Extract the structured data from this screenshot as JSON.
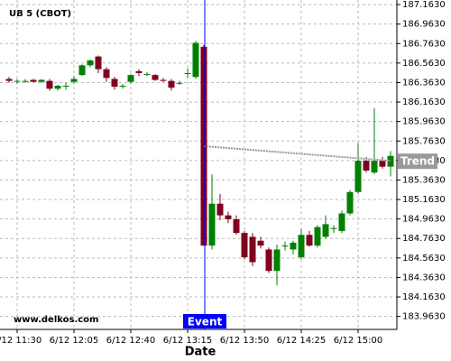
{
  "chart_data": {
    "type": "candlestick",
    "title": "UB 5 (CBOT)",
    "watermark": "www.delkos.com",
    "x_label": "Date",
    "categories": [
      null,
      "6/12 11:30",
      null,
      null,
      null,
      null,
      null,
      null,
      "6/12 12:05",
      null,
      null,
      null,
      null,
      null,
      null,
      "6/12 12:40",
      null,
      null,
      null,
      null,
      null,
      null,
      "6/12 13:15",
      null,
      null,
      null,
      null,
      null,
      null,
      "6/12 13:50",
      null,
      null,
      null,
      null,
      null,
      null,
      "6/12 14:25",
      null,
      null,
      null,
      null,
      null,
      null,
      "6/12 15:00",
      null,
      null,
      null,
      null
    ],
    "open": [
      186.4,
      186.38,
      186.38,
      186.39,
      186.37,
      186.38,
      186.3,
      186.33,
      186.37,
      186.44,
      186.54,
      186.63,
      186.5,
      186.4,
      186.33,
      186.37,
      186.48,
      186.45,
      186.44,
      186.39,
      186.38,
      186.36,
      186.46,
      186.42,
      186.73,
      184.69,
      185.12,
      185.0,
      184.96,
      184.82,
      184.78,
      184.74,
      184.65,
      184.43,
      184.69,
      184.65,
      184.57,
      184.8,
      184.69,
      184.78,
      184.87,
      184.84,
      185.02,
      185.24,
      185.56,
      185.44,
      185.56,
      185.5
    ],
    "high": [
      186.42,
      186.4,
      186.4,
      186.4,
      186.4,
      186.4,
      186.34,
      186.36,
      186.43,
      186.55,
      186.6,
      186.64,
      186.52,
      186.42,
      186.35,
      186.45,
      186.5,
      186.47,
      186.45,
      186.41,
      186.4,
      186.38,
      186.51,
      186.79,
      186.75,
      185.42,
      185.22,
      185.04,
      185.0,
      184.84,
      184.82,
      184.78,
      184.67,
      184.7,
      184.73,
      184.74,
      184.86,
      184.84,
      184.9,
      185.0,
      184.9,
      185.05,
      185.26,
      185.74,
      185.6,
      186.1,
      185.6,
      185.66
    ],
    "low": [
      186.36,
      186.35,
      186.36,
      186.37,
      186.36,
      186.28,
      186.28,
      186.29,
      186.35,
      186.43,
      186.52,
      186.46,
      186.37,
      186.29,
      186.3,
      186.35,
      186.43,
      186.43,
      186.38,
      186.37,
      186.28,
      186.34,
      186.41,
      186.4,
      184.69,
      184.65,
      184.95,
      184.92,
      184.8,
      184.55,
      184.48,
      184.66,
      184.41,
      184.28,
      184.64,
      184.6,
      184.55,
      184.68,
      184.67,
      184.76,
      184.82,
      184.82,
      185.0,
      185.22,
      185.44,
      185.42,
      185.48,
      185.4
    ],
    "close": [
      186.38,
      186.38,
      186.38,
      186.37,
      186.39,
      186.3,
      186.33,
      186.33,
      186.4,
      186.54,
      186.59,
      186.5,
      186.41,
      186.32,
      186.33,
      186.44,
      186.46,
      186.45,
      186.39,
      186.38,
      186.31,
      186.36,
      186.46,
      186.77,
      184.69,
      185.12,
      185.0,
      184.96,
      184.82,
      184.57,
      184.52,
      184.69,
      184.43,
      184.65,
      184.69,
      184.72,
      184.8,
      184.69,
      184.88,
      184.91,
      184.87,
      185.02,
      185.24,
      185.56,
      185.46,
      185.56,
      185.5,
      185.61
    ],
    "up_color": "#008000",
    "down_color": "#800020",
    "ylim": [
      183.83,
      187.21
    ],
    "yticks": [
      {
        "value": 187.163,
        "label": "187.1630"
      },
      {
        "value": 186.963,
        "label": "186.9630"
      },
      {
        "value": 186.763,
        "label": "186.7630"
      },
      {
        "value": 186.563,
        "label": "186.5630"
      },
      {
        "value": 186.363,
        "label": "186.3630"
      },
      {
        "value": 186.163,
        "label": "186.1630"
      },
      {
        "value": 185.963,
        "label": "185.9630"
      },
      {
        "value": 185.763,
        "label": "185.7630"
      },
      {
        "value": 185.563,
        "label": "185.5630"
      },
      {
        "value": 185.363,
        "label": "185.3630"
      },
      {
        "value": 185.163,
        "label": "185.1630"
      },
      {
        "value": 184.963,
        "label": "184.9630"
      },
      {
        "value": 184.763,
        "label": "184.7630"
      },
      {
        "value": 184.563,
        "label": "184.5630"
      },
      {
        "value": 184.363,
        "label": "184.3630"
      },
      {
        "value": 184.163,
        "label": "184.1630"
      },
      {
        "value": 183.963,
        "label": "183.9630"
      }
    ],
    "grid": true,
    "event": {
      "label": "Event",
      "index": 24,
      "color": "#0000ff"
    },
    "trend": {
      "label": "Trend",
      "x": [
        24,
        47
      ],
      "values": [
        185.71,
        185.56
      ],
      "color": "#999999"
    }
  }
}
